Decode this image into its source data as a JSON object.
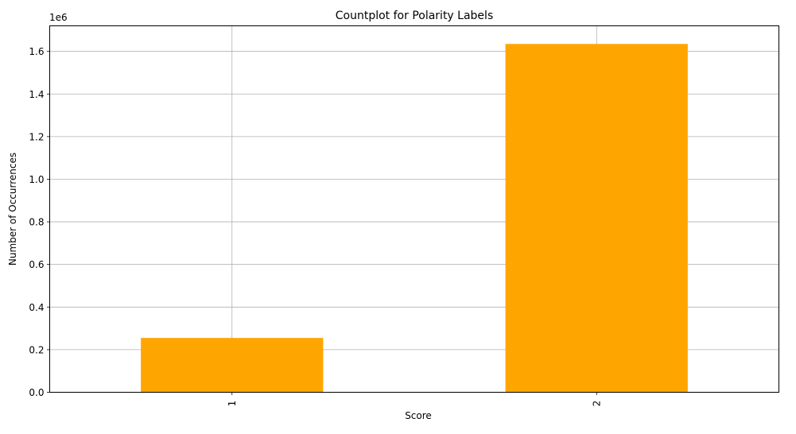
{
  "chart_data": {
    "type": "bar",
    "title": "Countplot for Polarity Labels",
    "xlabel": "Score",
    "ylabel": "Number of Occurrences",
    "categories": [
      "1",
      "2"
    ],
    "values": [
      255000,
      1635000
    ],
    "ylim": [
      0,
      1720000
    ],
    "y_ticks": [
      0,
      200000,
      400000,
      600000,
      800000,
      1000000,
      1200000,
      1400000,
      1600000
    ],
    "y_tick_labels": [
      "0.0",
      "0.2",
      "0.4",
      "0.6",
      "0.8",
      "1.0",
      "1.2",
      "1.4",
      "1.6"
    ],
    "y_offset_label": "1e6",
    "x_tick_rotation": "vertical",
    "grid": true,
    "legend": "none",
    "bar_color": "#ffa500",
    "grid_color": "#b0b0b0"
  }
}
